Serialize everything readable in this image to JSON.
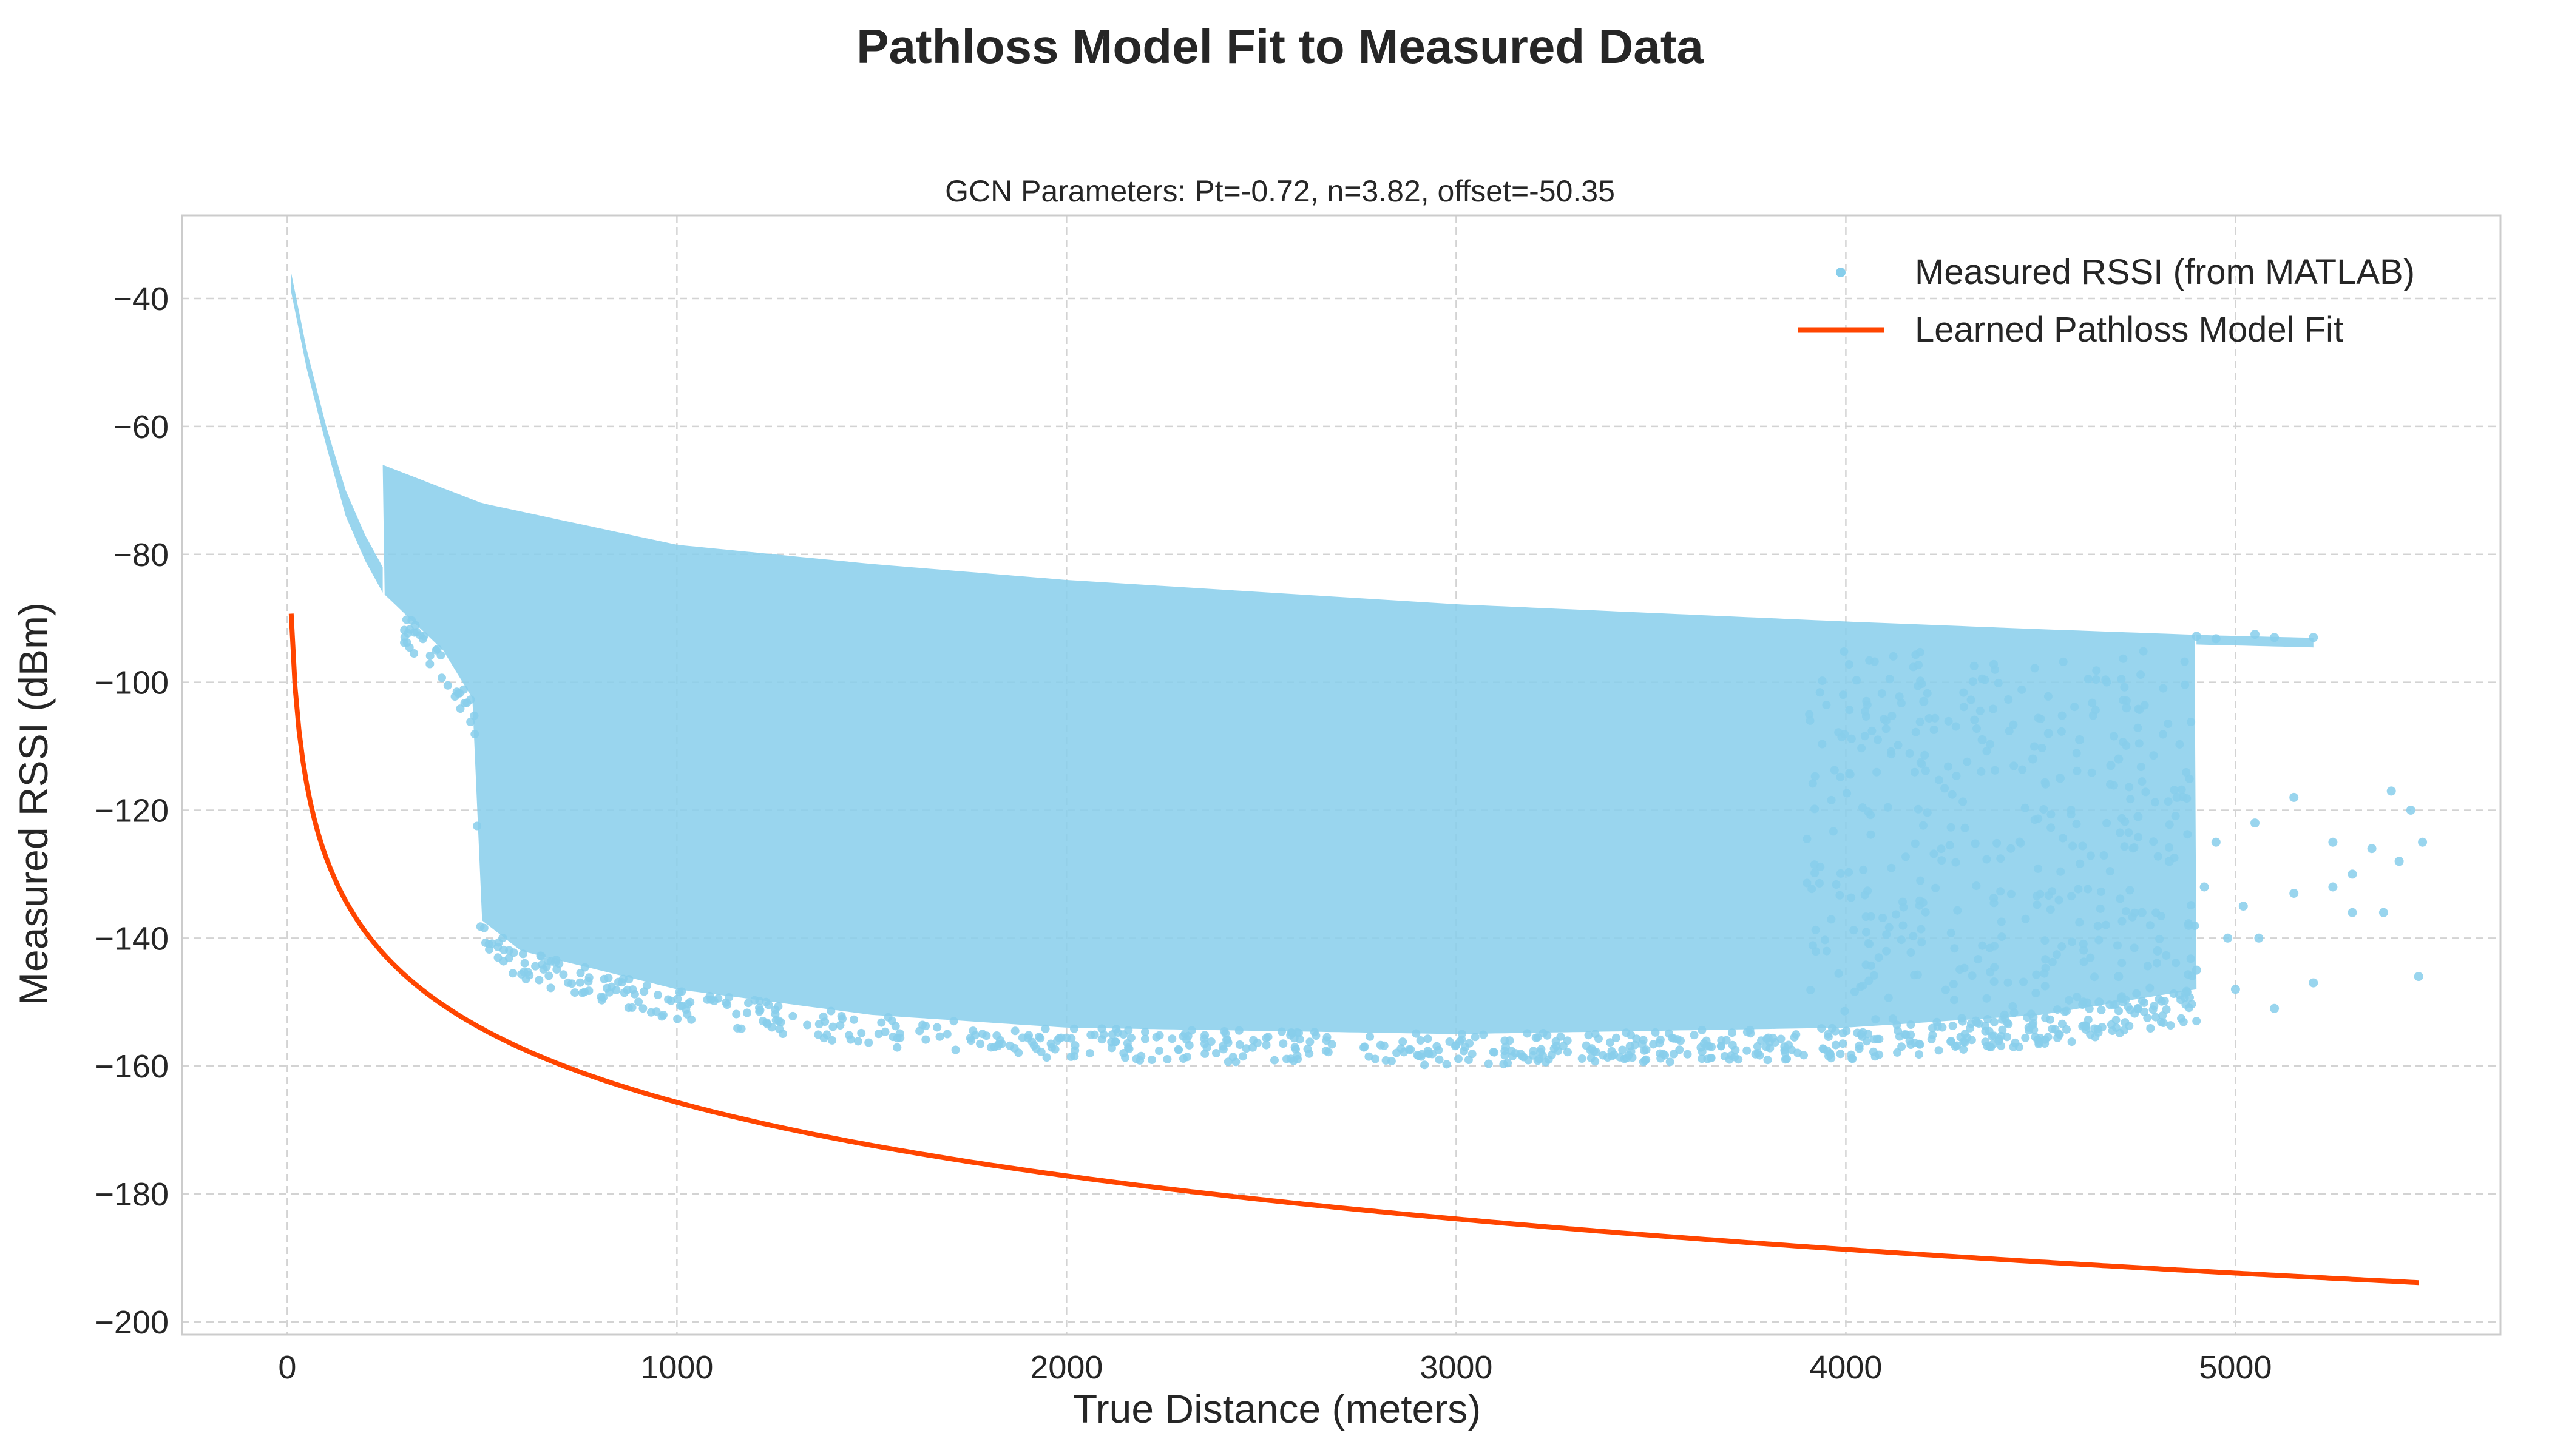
{
  "chart_data": {
    "type": "scatter",
    "title": "Pathloss Model Fit to Measured Data",
    "subtitle": "GCN Parameters: Pt=-0.72, n=3.82, offset=-50.35",
    "xlabel": "True Distance (meters)",
    "ylabel": "Measured RSSI (dBm)",
    "xlim": [
      -270,
      5680
    ],
    "ylim": [
      -202,
      -27
    ],
    "xticks": [
      0,
      1000,
      2000,
      3000,
      4000,
      5000
    ],
    "yticks": [
      -200,
      -180,
      -160,
      -140,
      -120,
      -100,
      -80,
      -60,
      -40
    ],
    "xtick_labels": [
      "0",
      "1000",
      "2000",
      "3000",
      "4000",
      "5000"
    ],
    "ytick_labels": [
      "−200",
      "−180",
      "−160",
      "−140",
      "−120",
      "−100",
      "−80",
      "−60",
      "−40"
    ],
    "grid": true,
    "legend_position": "top-right",
    "series": [
      {
        "name": "Measured RSSI (from MATLAB)",
        "kind": "scatter",
        "color": "#87CEEB",
        "envelope": {
          "upper_curve_near": [
            [
              10,
              -36
            ],
            [
              50,
              -48
            ],
            [
              100,
              -60
            ],
            [
              150,
              -70
            ],
            [
              200,
              -77
            ],
            [
              245,
              -82
            ]
          ],
          "upper_curve_far": [
            [
              245,
              -66
            ],
            [
              500,
              -72
            ],
            [
              1000,
              -78.5
            ],
            [
              1500,
              -81.5
            ],
            [
              2000,
              -84
            ],
            [
              3000,
              -87.8
            ],
            [
              4000,
              -90.5
            ],
            [
              4500,
              -91.7
            ],
            [
              5000,
              -92.8
            ]
          ],
          "lower_bound": [
            [
              245,
              -86
            ],
            [
              400,
              -95
            ],
            [
              480,
              -103
            ],
            [
              495,
              -137
            ],
            [
              600,
              -142
            ],
            [
              1000,
              -148
            ],
            [
              1500,
              -152
            ],
            [
              2000,
              -154
            ],
            [
              3000,
              -155
            ],
            [
              4000,
              -154
            ],
            [
              4500,
              -152
            ],
            [
              4900,
              -148
            ]
          ],
          "upper_dense_band_far": [
            [
              1500,
              -94
            ],
            [
              2500,
              -97
            ],
            [
              3500,
              -100
            ],
            [
              4000,
              -103
            ],
            [
              4500,
              -106
            ]
          ]
        },
        "outliers": [
          [
            5200,
            -93
          ],
          [
            5050,
            -92.5
          ],
          [
            4950,
            -93.2
          ],
          [
            4900,
            -92.8
          ],
          [
            5100,
            -93
          ],
          [
            4720,
            -104
          ],
          [
            4700,
            -112
          ],
          [
            4850,
            -118
          ],
          [
            4950,
            -125
          ],
          [
            5050,
            -122
          ],
          [
            5150,
            -118
          ],
          [
            5250,
            -125
          ],
          [
            5300,
            -130
          ],
          [
            5350,
            -126
          ],
          [
            5400,
            -117
          ],
          [
            5450,
            -120
          ],
          [
            5480,
            -125
          ],
          [
            5470,
            -146
          ],
          [
            5200,
            -147
          ],
          [
            5100,
            -151
          ],
          [
            5000,
            -148
          ],
          [
            4980,
            -140
          ],
          [
            4920,
            -132
          ],
          [
            4880,
            -138
          ],
          [
            4830,
            -128
          ],
          [
            4800,
            -142
          ],
          [
            4760,
            -136
          ],
          [
            4750,
            -121
          ],
          [
            4680,
            -113
          ],
          [
            4600,
            -109
          ],
          [
            4550,
            -115
          ],
          [
            4520,
            -108
          ],
          [
            4480,
            -112
          ],
          [
            4650,
            -150
          ],
          [
            4700,
            -146
          ],
          [
            5300,
            -136
          ],
          [
            5250,
            -132
          ],
          [
            5150,
            -133
          ],
          [
            5020,
            -135
          ],
          [
            4350,
            -109
          ],
          [
            4200,
            -103
          ],
          [
            5380,
            -136
          ],
          [
            5420,
            -128
          ],
          [
            4900,
            -145
          ],
          [
            5060,
            -140
          ]
        ]
      },
      {
        "name": "Learned Pathloss Model Fit",
        "kind": "line",
        "color": "#FF4500",
        "model": {
          "Pt": -0.72,
          "n": 3.82,
          "offset": -50.35
        },
        "x": [
          10,
          20,
          40,
          80,
          150,
          300,
          500,
          1000,
          1500,
          2000,
          2500,
          3000,
          3500,
          4000,
          4500,
          5000,
          5470
        ],
        "y": [
          -84.7,
          -96.2,
          -107.7,
          -119.2,
          -129.7,
          -141.2,
          -149.6,
          -161.1,
          -167.9,
          -172.7,
          -176.4,
          -179.4,
          -182.0,
          -184.2,
          -186.1,
          -187.9,
          -189.4
        ]
      }
    ]
  }
}
